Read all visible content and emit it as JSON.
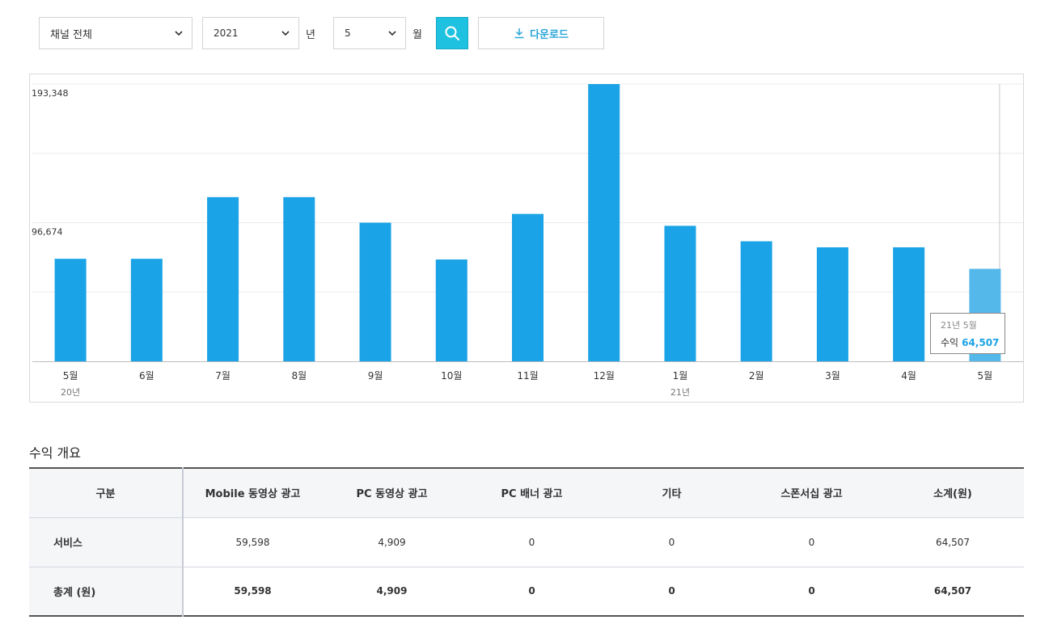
{
  "filters": {
    "channel": "채널 전체",
    "year": "2021",
    "year_unit": "년",
    "month": "5",
    "month_unit": "월",
    "download_label": "다운로드"
  },
  "colors": {
    "accent": "#1fc1e0",
    "bar": "#1aa3e6",
    "bar_highlight": "#55b8ea"
  },
  "chart_data": {
    "type": "bar",
    "categories": [
      "5월",
      "6월",
      "7월",
      "8월",
      "9월",
      "10월",
      "11월",
      "12월",
      "1월",
      "2월",
      "3월",
      "4월",
      "5월"
    ],
    "year_labels": [
      {
        "index": 0,
        "label": "20년"
      },
      {
        "index": 8,
        "label": "21년"
      }
    ],
    "values": [
      71500,
      71500,
      114500,
      114500,
      96700,
      71000,
      102800,
      193348,
      94500,
      83700,
      79500,
      79500,
      64507
    ],
    "yticks": [
      96674,
      193348
    ],
    "ytick_labels": [
      "96,674",
      "193,348"
    ],
    "ylim": [
      0,
      193348
    ],
    "highlight_index": 12,
    "grid": true
  },
  "tooltip": {
    "date": "21년 5월",
    "label": "수익",
    "value": "64,507"
  },
  "summary": {
    "title": "수익 개요",
    "headers": [
      "구분",
      "Mobile 동영상 광고",
      "PC 동영상 광고",
      "PC 배너 광고",
      "기타",
      "스폰서십 광고",
      "소계(원)"
    ],
    "rows": [
      {
        "label": "서비스",
        "cells": [
          "59,598",
          "4,909",
          "0",
          "0",
          "0",
          "64,507"
        ]
      },
      {
        "label": "총계 (원)",
        "cells": [
          "59,598",
          "4,909",
          "0",
          "0",
          "0",
          "64,507"
        ]
      }
    ]
  }
}
